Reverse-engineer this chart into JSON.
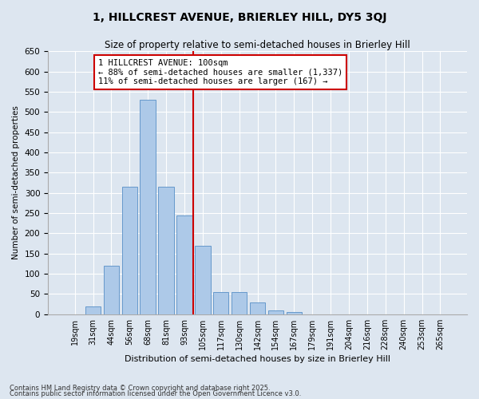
{
  "title": "1, HILLCREST AVENUE, BRIERLEY HILL, DY5 3QJ",
  "subtitle": "Size of property relative to semi-detached houses in Brierley Hill",
  "xlabel": "Distribution of semi-detached houses by size in Brierley Hill",
  "ylabel": "Number of semi-detached properties",
  "categories": [
    "19sqm",
    "31sqm",
    "44sqm",
    "56sqm",
    "68sqm",
    "81sqm",
    "93sqm",
    "105sqm",
    "117sqm",
    "130sqm",
    "142sqm",
    "154sqm",
    "167sqm",
    "179sqm",
    "191sqm",
    "204sqm",
    "216sqm",
    "228sqm",
    "240sqm",
    "253sqm",
    "265sqm"
  ],
  "values": [
    0,
    20,
    120,
    315,
    530,
    315,
    245,
    170,
    55,
    55,
    30,
    10,
    5,
    0,
    0,
    0,
    0,
    0,
    0,
    0,
    0
  ],
  "bar_color": "#adc9e8",
  "bar_edge_color": "#6699cc",
  "highlight_color": "#cc0000",
  "annotation_title": "1 HILLCREST AVENUE: 100sqm",
  "annotation_line1": "← 88% of semi-detached houses are smaller (1,337)",
  "annotation_line2": "11% of semi-detached houses are larger (167) →",
  "annotation_box_color": "#cc0000",
  "ylim": [
    0,
    650
  ],
  "yticks": [
    0,
    50,
    100,
    150,
    200,
    250,
    300,
    350,
    400,
    450,
    500,
    550,
    600,
    650
  ],
  "bg_color": "#dde6f0",
  "footnote1": "Contains HM Land Registry data © Crown copyright and database right 2025.",
  "footnote2": "Contains public sector information licensed under the Open Government Licence v3.0."
}
